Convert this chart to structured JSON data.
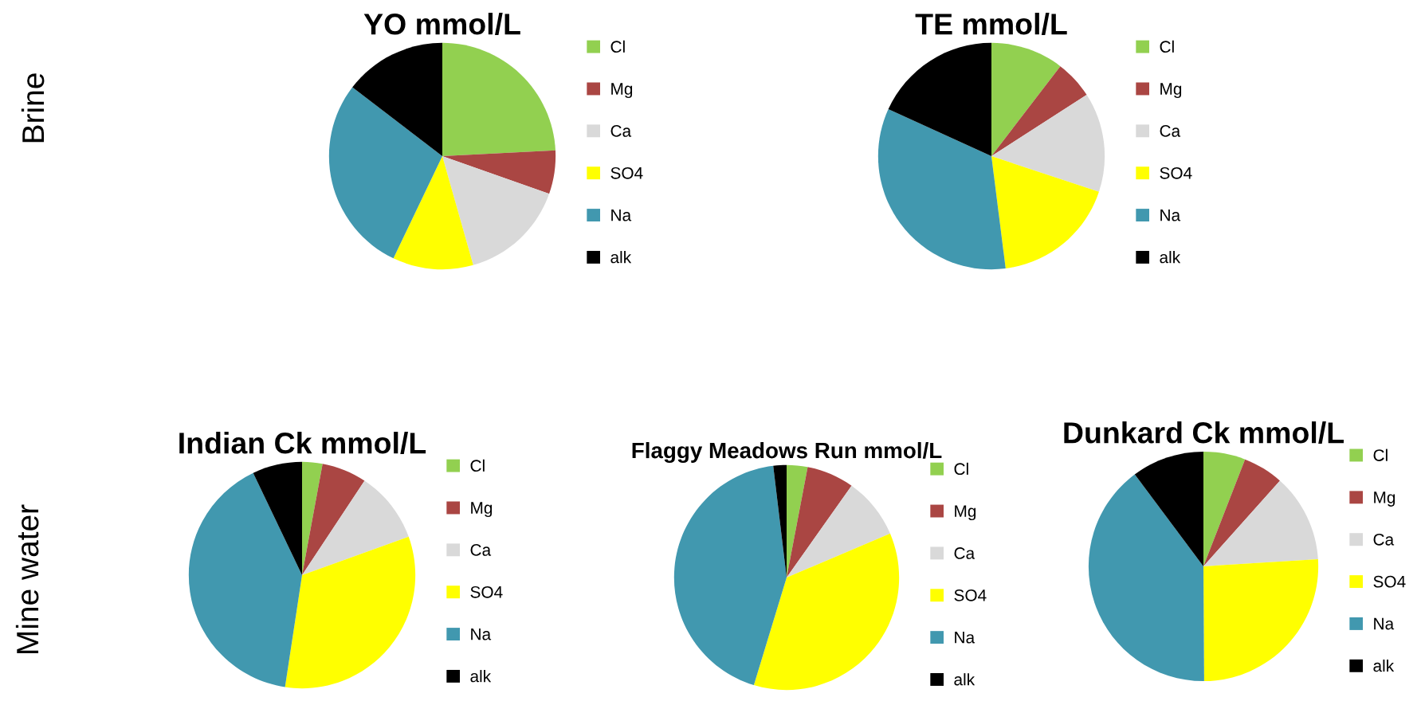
{
  "chart_data": [
    {
      "type": "pie",
      "title": "YO mmol/L",
      "categories": [
        "Cl",
        "Mg",
        "Ca",
        "SO4",
        "Na",
        "alk"
      ],
      "values": [
        24.2,
        6.2,
        15.2,
        11.5,
        28.3,
        14.6
      ],
      "colors": [
        "#92d050",
        "#aa4643",
        "#d9d9d9",
        "#ffff00",
        "#4198af",
        "#000000"
      ],
      "legend": "right",
      "annotations": [
        "Brine"
      ]
    },
    {
      "type": "pie",
      "title": "TE mmol/L",
      "categories": [
        "Cl",
        "Mg",
        "Ca",
        "SO4",
        "Na",
        "alk"
      ],
      "values": [
        10.4,
        5.5,
        14.2,
        17.9,
        33.8,
        18.2
      ],
      "colors": [
        "#92d050",
        "#aa4643",
        "#d9d9d9",
        "#ffff00",
        "#4198af",
        "#000000"
      ],
      "legend": "right"
    },
    {
      "type": "pie",
      "title": "Indian Ck mmol/L",
      "categories": [
        "Cl",
        "Mg",
        "Ca",
        "SO4",
        "Na",
        "alk"
      ],
      "values": [
        2.9,
        6.4,
        10.2,
        32.9,
        40.5,
        7.1
      ],
      "colors": [
        "#92d050",
        "#aa4643",
        "#d9d9d9",
        "#ffff00",
        "#4198af",
        "#000000"
      ],
      "legend": "right",
      "annotations": [
        "Mine water"
      ]
    },
    {
      "type": "pie",
      "title": "Flaggy Meadows Run mmol/L",
      "categories": [
        "Cl",
        "Mg",
        "Ca",
        "SO4",
        "Na",
        "alk"
      ],
      "values": [
        3.0,
        6.8,
        8.8,
        36.1,
        43.4,
        1.9
      ],
      "colors": [
        "#92d050",
        "#aa4643",
        "#d9d9d9",
        "#ffff00",
        "#4198af",
        "#000000"
      ],
      "legend": "right"
    },
    {
      "type": "pie",
      "title": "Dunkard Ck mmol/L",
      "categories": [
        "Cl",
        "Mg",
        "Ca",
        "SO4",
        "Na",
        "alk"
      ],
      "values": [
        5.9,
        5.7,
        12.4,
        25.9,
        39.9,
        10.2
      ],
      "colors": [
        "#92d050",
        "#aa4643",
        "#d9d9d9",
        "#ffff00",
        "#4198af",
        "#000000"
      ],
      "legend": "right"
    }
  ]
}
